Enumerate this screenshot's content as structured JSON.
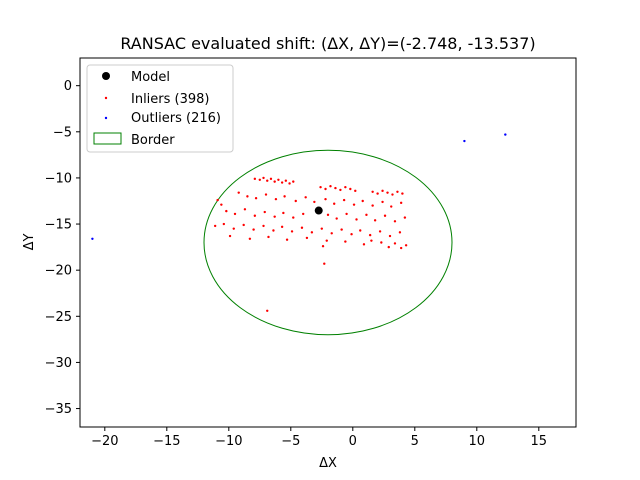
{
  "chart_data": {
    "type": "scatter",
    "title": "RANSAC evaluated shift: (ΔX, ΔY)=(-2.748, -13.537)",
    "xlabel": "ΔX",
    "ylabel": "ΔY",
    "xlim": [
      -22,
      18
    ],
    "ylim": [
      -37,
      3
    ],
    "xticks": [
      -20,
      -15,
      -10,
      -5,
      0,
      5,
      10,
      15
    ],
    "yticks": [
      0,
      -5,
      -10,
      -15,
      -20,
      -25,
      -30,
      -35
    ],
    "grid": false,
    "legend_position": "top-left",
    "legend": [
      {
        "label": "Model",
        "marker": "circle",
        "color": "#000000"
      },
      {
        "label": "Inliers (398)",
        "marker": "dot",
        "color": "#ff0000"
      },
      {
        "label": "Outliers (216)",
        "marker": "dot",
        "color": "#0000ff"
      },
      {
        "label": "Border",
        "marker": "ellipse",
        "color": "#008000"
      }
    ],
    "model": {
      "x": -2.748,
      "y": -13.537
    },
    "border": {
      "cx": -2.0,
      "cy": -17.0,
      "rx": 10.0,
      "ry": 10.0
    },
    "outliers": [
      {
        "x": -21.0,
        "y": -16.6
      },
      {
        "x": 9.0,
        "y": -6.0
      },
      {
        "x": 12.3,
        "y": -5.3
      }
    ],
    "inliers": [
      {
        "x": -7.9,
        "y": -10.1
      },
      {
        "x": -7.5,
        "y": -10.2
      },
      {
        "x": -7.2,
        "y": -10.0
      },
      {
        "x": -6.9,
        "y": -10.3
      },
      {
        "x": -6.6,
        "y": -10.1
      },
      {
        "x": -6.3,
        "y": -10.4
      },
      {
        "x": -6.0,
        "y": -10.2
      },
      {
        "x": -5.7,
        "y": -10.5
      },
      {
        "x": -5.4,
        "y": -10.3
      },
      {
        "x": -5.1,
        "y": -10.6
      },
      {
        "x": -4.8,
        "y": -10.4
      },
      {
        "x": -2.6,
        "y": -11.0
      },
      {
        "x": -2.2,
        "y": -11.2
      },
      {
        "x": -1.8,
        "y": -10.9
      },
      {
        "x": -1.4,
        "y": -11.1
      },
      {
        "x": -1.0,
        "y": -11.3
      },
      {
        "x": -0.6,
        "y": -11.0
      },
      {
        "x": -0.2,
        "y": -11.2
      },
      {
        "x": 0.2,
        "y": -11.4
      },
      {
        "x": 1.6,
        "y": -11.5
      },
      {
        "x": 2.0,
        "y": -11.7
      },
      {
        "x": 2.4,
        "y": -11.4
      },
      {
        "x": 2.8,
        "y": -11.6
      },
      {
        "x": 3.2,
        "y": -11.8
      },
      {
        "x": 3.6,
        "y": -11.5
      },
      {
        "x": 4.0,
        "y": -11.7
      },
      {
        "x": -10.9,
        "y": -12.4
      },
      {
        "x": -10.6,
        "y": -12.9
      },
      {
        "x": -9.2,
        "y": -11.6
      },
      {
        "x": -8.5,
        "y": -12.0
      },
      {
        "x": -7.8,
        "y": -12.2
      },
      {
        "x": -7.0,
        "y": -11.8
      },
      {
        "x": -6.2,
        "y": -12.3
      },
      {
        "x": -5.5,
        "y": -12.0
      },
      {
        "x": -4.6,
        "y": -12.5
      },
      {
        "x": -3.8,
        "y": -12.1
      },
      {
        "x": -3.1,
        "y": -12.6
      },
      {
        "x": -2.2,
        "y": -12.3
      },
      {
        "x": -1.5,
        "y": -12.8
      },
      {
        "x": -0.7,
        "y": -12.4
      },
      {
        "x": 0.1,
        "y": -12.9
      },
      {
        "x": 0.8,
        "y": -12.5
      },
      {
        "x": 1.6,
        "y": -13.0
      },
      {
        "x": 2.4,
        "y": -12.6
      },
      {
        "x": 3.1,
        "y": -13.1
      },
      {
        "x": 3.9,
        "y": -12.7
      },
      {
        "x": -10.2,
        "y": -13.6
      },
      {
        "x": -9.5,
        "y": -13.9
      },
      {
        "x": -8.7,
        "y": -13.4
      },
      {
        "x": -7.9,
        "y": -14.1
      },
      {
        "x": -7.1,
        "y": -13.7
      },
      {
        "x": -6.3,
        "y": -14.2
      },
      {
        "x": -5.6,
        "y": -13.8
      },
      {
        "x": -4.8,
        "y": -14.3
      },
      {
        "x": -4.0,
        "y": -13.9
      },
      {
        "x": -2.0,
        "y": -14.0
      },
      {
        "x": -1.3,
        "y": -14.4
      },
      {
        "x": -0.5,
        "y": -13.9
      },
      {
        "x": 0.3,
        "y": -14.5
      },
      {
        "x": 1.1,
        "y": -14.0
      },
      {
        "x": 1.8,
        "y": -14.6
      },
      {
        "x": 2.6,
        "y": -14.1
      },
      {
        "x": 3.4,
        "y": -14.7
      },
      {
        "x": 4.2,
        "y": -14.3
      },
      {
        "x": -11.1,
        "y": -15.2
      },
      {
        "x": -10.4,
        "y": -15.0
      },
      {
        "x": -9.6,
        "y": -15.5
      },
      {
        "x": -8.8,
        "y": -15.1
      },
      {
        "x": -8.0,
        "y": -15.6
      },
      {
        "x": -7.2,
        "y": -15.2
      },
      {
        "x": -6.4,
        "y": -15.7
      },
      {
        "x": -5.7,
        "y": -15.3
      },
      {
        "x": -4.9,
        "y": -15.8
      },
      {
        "x": -4.1,
        "y": -15.4
      },
      {
        "x": -3.3,
        "y": -15.9
      },
      {
        "x": -2.5,
        "y": -15.5
      },
      {
        "x": -1.7,
        "y": -16.0
      },
      {
        "x": -0.9,
        "y": -15.6
      },
      {
        "x": -0.1,
        "y": -16.1
      },
      {
        "x": 0.6,
        "y": -15.7
      },
      {
        "x": 1.4,
        "y": -16.2
      },
      {
        "x": 2.2,
        "y": -15.8
      },
      {
        "x": 3.0,
        "y": -16.3
      },
      {
        "x": 3.8,
        "y": -15.9
      },
      {
        "x": -9.9,
        "y": -16.3
      },
      {
        "x": -8.3,
        "y": -16.6
      },
      {
        "x": -6.8,
        "y": -16.4
      },
      {
        "x": -5.3,
        "y": -16.7
      },
      {
        "x": -3.7,
        "y": -16.5
      },
      {
        "x": -2.1,
        "y": -16.8
      },
      {
        "x": -2.4,
        "y": -17.4
      },
      {
        "x": -0.6,
        "y": -16.9
      },
      {
        "x": 0.9,
        "y": -17.2
      },
      {
        "x": 1.5,
        "y": -16.8
      },
      {
        "x": 2.3,
        "y": -17.0
      },
      {
        "x": 2.9,
        "y": -17.5
      },
      {
        "x": 3.4,
        "y": -17.1
      },
      {
        "x": 3.9,
        "y": -17.6
      },
      {
        "x": 4.3,
        "y": -17.3
      },
      {
        "x": -2.3,
        "y": -19.3
      },
      {
        "x": -6.9,
        "y": -24.4
      }
    ]
  }
}
